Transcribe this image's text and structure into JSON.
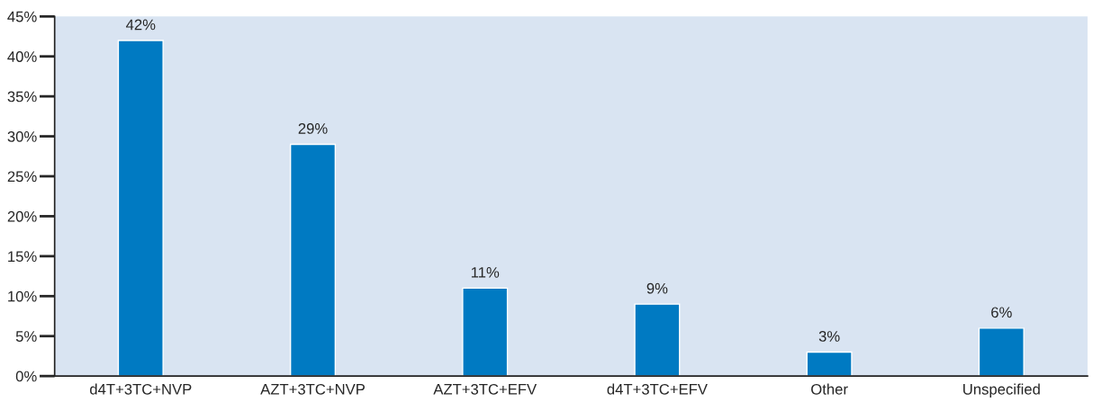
{
  "chart_data": {
    "type": "bar",
    "categories": [
      "d4T+3TC+NVP",
      "AZT+3TC+NVP",
      "AZT+3TC+EFV",
      "d4T+3TC+EFV",
      "Other",
      "Unspecified"
    ],
    "values": [
      42,
      29,
      11,
      9,
      3,
      6
    ],
    "value_labels": [
      "42%",
      "29%",
      "11%",
      "9%",
      "3%",
      "6%"
    ],
    "color": "#007ac2",
    "ylim": [
      0,
      45
    ],
    "yticks": [
      {
        "value": 0,
        "label": "0%"
      },
      {
        "value": 5,
        "label": "5%"
      },
      {
        "value": 10,
        "label": "10%"
      },
      {
        "value": 15,
        "label": "15%"
      },
      {
        "value": 20,
        "label": "20%"
      },
      {
        "value": 25,
        "label": "25%"
      },
      {
        "value": 30,
        "label": "30%"
      },
      {
        "value": 35,
        "label": "35%"
      },
      {
        "value": 40,
        "label": "40%"
      },
      {
        "value": 45,
        "label": "45%"
      }
    ],
    "grid": false
  }
}
